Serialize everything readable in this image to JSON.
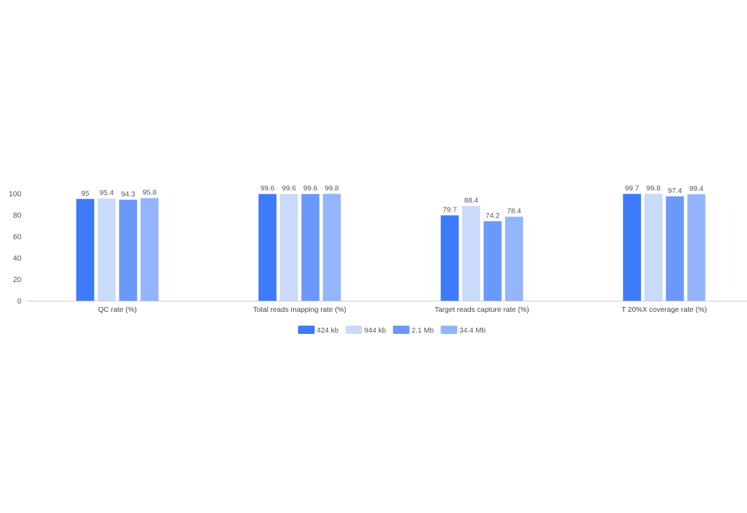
{
  "chart_data": {
    "type": "bar",
    "title": "",
    "xlabel": "",
    "ylabel": "",
    "ylim": [
      0,
      100
    ],
    "yticks": [
      0,
      20,
      40,
      60,
      80,
      100
    ],
    "grid": false,
    "legend_position": "bottom",
    "categories": [
      "QC rate (%)",
      "Total reads mapping rate (%)",
      "Target reads capture rate (%)",
      "T 20%X coverage rate (%)"
    ],
    "series": [
      {
        "name": "424 kb",
        "color": "#3d7bfa",
        "values": [
          95,
          99.6,
          79.7,
          99.7
        ]
      },
      {
        "name": "944 kb",
        "color": "#c9dafa",
        "values": [
          95.4,
          99.6,
          88.4,
          99.8
        ]
      },
      {
        "name": "2.1 Mb",
        "color": "#6b98fb",
        "values": [
          94.3,
          99.6,
          74.2,
          97.4
        ]
      },
      {
        "name": "34.4 Mb",
        "color": "#94b5fc",
        "values": [
          95.8,
          99.8,
          78.4,
          99.4
        ]
      }
    ]
  }
}
